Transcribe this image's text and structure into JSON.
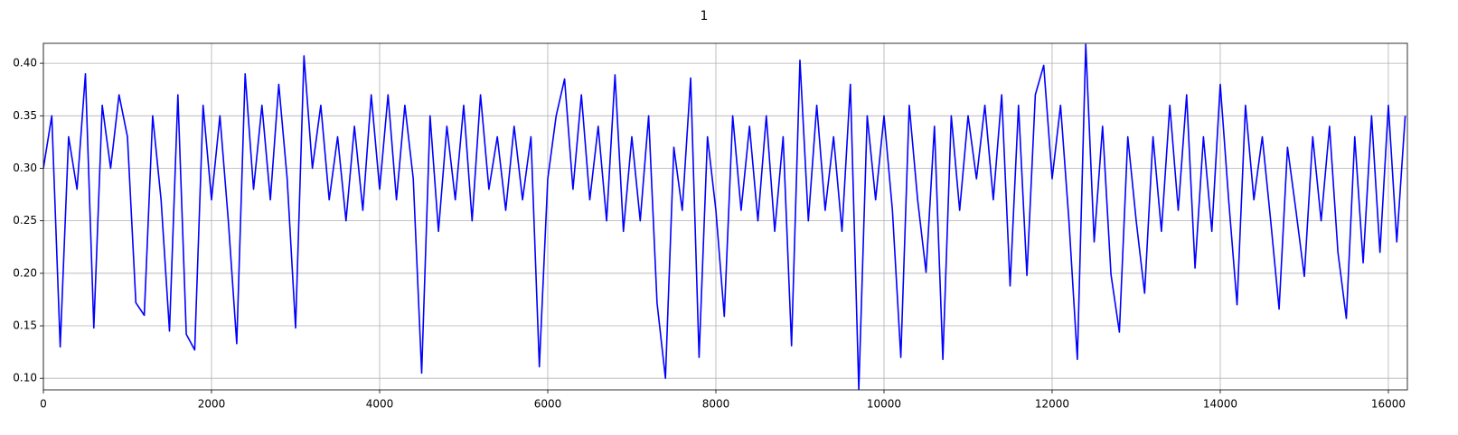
{
  "chart_data": {
    "type": "line",
    "title": "1",
    "x": [
      0,
      100,
      200,
      300,
      400,
      500,
      600,
      700,
      800,
      900,
      1000,
      1100,
      1200,
      1300,
      1400,
      1500,
      1600,
      1700,
      1800,
      1900,
      2000,
      2100,
      2200,
      2300,
      2400,
      2500,
      2600,
      2700,
      2800,
      2900,
      3000,
      3100,
      3200,
      3300,
      3400,
      3500,
      3600,
      3700,
      3800,
      3900,
      4000,
      4100,
      4200,
      4300,
      4400,
      4500,
      4600,
      4700,
      4800,
      4900,
      5000,
      5100,
      5200,
      5300,
      5400,
      5500,
      5600,
      5700,
      5800,
      5900,
      6000,
      6100,
      6200,
      6300,
      6400,
      6500,
      6600,
      6700,
      6800,
      6900,
      7000,
      7100,
      7200,
      7300,
      7400,
      7500,
      7600,
      7700,
      7800,
      7900,
      8000,
      8100,
      8200,
      8300,
      8400,
      8500,
      8600,
      8700,
      8800,
      8900,
      9000,
      9100,
      9200,
      9300,
      9400,
      9500,
      9600,
      9700,
      9800,
      9900,
      10000,
      10100,
      10200,
      10300,
      10400,
      10500,
      10600,
      10700,
      10800,
      10900,
      11000,
      11100,
      11200,
      11300,
      11400,
      11500,
      11600,
      11700,
      11800,
      11900,
      12000,
      12100,
      12200,
      12300,
      12400,
      12500,
      12600,
      12700,
      12800,
      12900,
      13000,
      13100,
      13200,
      13300,
      13400,
      13500,
      13600,
      13700,
      13800,
      13900,
      14000,
      14100,
      14200,
      14300,
      14400,
      14500,
      14600,
      14700,
      14800,
      14900,
      15000,
      15100,
      15200,
      15300,
      15400,
      15500,
      15600,
      15700,
      15800,
      15900,
      16000,
      16100,
      16200
    ],
    "series": [
      {
        "color": "#0000ff",
        "values": [
          0.3,
          0.35,
          0.13,
          0.33,
          0.28,
          0.39,
          0.148,
          0.36,
          0.3,
          0.37,
          0.33,
          0.172,
          0.16,
          0.35,
          0.27,
          0.145,
          0.37,
          0.142,
          0.127,
          0.36,
          0.27,
          0.35,
          0.25,
          0.133,
          0.39,
          0.28,
          0.36,
          0.27,
          0.38,
          0.29,
          0.148,
          0.407,
          0.3,
          0.36,
          0.27,
          0.33,
          0.25,
          0.34,
          0.26,
          0.37,
          0.28,
          0.37,
          0.27,
          0.36,
          0.29,
          0.105,
          0.35,
          0.24,
          0.34,
          0.27,
          0.36,
          0.25,
          0.37,
          0.28,
          0.33,
          0.26,
          0.34,
          0.27,
          0.33,
          0.111,
          0.29,
          0.35,
          0.385,
          0.28,
          0.37,
          0.27,
          0.34,
          0.25,
          0.389,
          0.24,
          0.33,
          0.25,
          0.35,
          0.172,
          0.1,
          0.32,
          0.26,
          0.386,
          0.12,
          0.33,
          0.26,
          0.159,
          0.35,
          0.26,
          0.34,
          0.25,
          0.35,
          0.24,
          0.33,
          0.131,
          0.403,
          0.25,
          0.36,
          0.26,
          0.33,
          0.24,
          0.38,
          0.089,
          0.35,
          0.27,
          0.35,
          0.26,
          0.12,
          0.36,
          0.27,
          0.201,
          0.34,
          0.118,
          0.35,
          0.26,
          0.35,
          0.29,
          0.36,
          0.27,
          0.37,
          0.188,
          0.36,
          0.198,
          0.37,
          0.398,
          0.29,
          0.36,
          0.25,
          0.118,
          0.418,
          0.23,
          0.34,
          0.199,
          0.144,
          0.33,
          0.25,
          0.181,
          0.33,
          0.24,
          0.36,
          0.26,
          0.37,
          0.205,
          0.33,
          0.24,
          0.38,
          0.27,
          0.17,
          0.36,
          0.27,
          0.33,
          0.25,
          0.166,
          0.32,
          0.26,
          0.197,
          0.33,
          0.25,
          0.34,
          0.22,
          0.157,
          0.33,
          0.21,
          0.35,
          0.22,
          0.36,
          0.23,
          0.35
        ]
      }
    ],
    "xlim": [
      0,
      16226
    ],
    "ylim": [
      0.089,
      0.419
    ],
    "xticks": [
      0,
      2000,
      4000,
      6000,
      8000,
      10000,
      12000,
      14000,
      16000
    ],
    "yticks": [
      {
        "value": 0.1,
        "label": "0.10"
      },
      {
        "value": 0.15,
        "label": "0.15"
      },
      {
        "value": 0.2,
        "label": "0.20"
      },
      {
        "value": 0.25,
        "label": "0.25"
      },
      {
        "value": 0.3,
        "label": "0.30"
      },
      {
        "value": 0.35,
        "label": "0.35"
      },
      {
        "value": 0.4,
        "label": "0.40"
      }
    ],
    "grid": true
  }
}
